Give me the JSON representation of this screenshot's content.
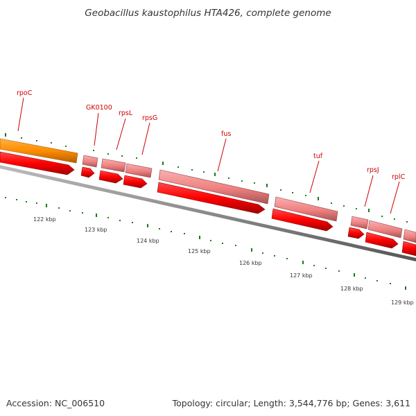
{
  "title": "Geobacillus kaustophilus HTA426, complete genome",
  "footer": {
    "accession": "Accession: NC_006510",
    "topology": "Topology: circular; Length: 3,544,776 bp; Genes: 3,611"
  },
  "genome_map": {
    "type": "circular genome map (zoomed segment)",
    "colors": {
      "cds_forward": "#ff0000",
      "gene_forward": "#f08080",
      "rna_highlight": "#ff8c00",
      "backbone": "#808080",
      "tick": "#1a7a1a",
      "label": "#cc0000"
    },
    "scale_labels": [
      "122 kbp",
      "123 kbp",
      "124 kbp",
      "125 kbp",
      "126 kbp",
      "127 kbp",
      "128 kbp",
      "129 kbp"
    ],
    "genes": [
      "rpoC",
      "GK0100",
      "rpsL",
      "rpsG",
      "fus",
      "tuf",
      "rpsJ",
      "rplC"
    ]
  }
}
